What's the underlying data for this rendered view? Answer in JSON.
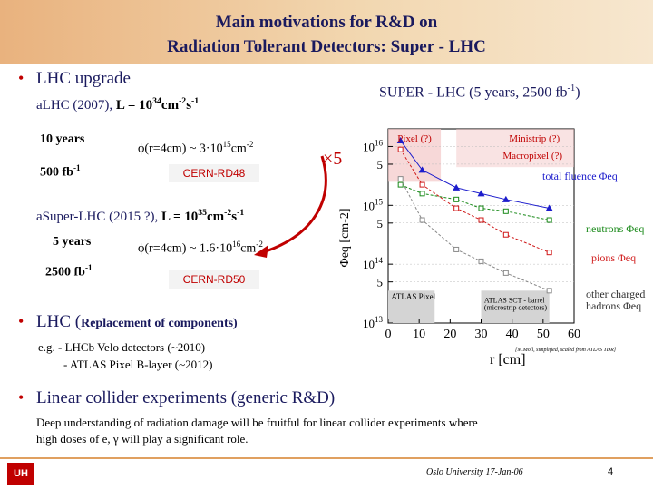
{
  "header": {
    "title_line1": "Main motivations for R&D on",
    "title_line2": "Radiation Tolerant Detectors: Super - LHC"
  },
  "bullets": {
    "b1": "LHC upgrade",
    "b2_main": "LHC (",
    "b2_small": "Replacement of components)",
    "b2_ex1": "e.g. - LHCb Velo detectors (~2010)",
    "b2_ex2": "- ATLAS Pixel B-layer (~2012)",
    "b3": "Linear collider experiments (generic R&D)",
    "b3_desc1": "Deep understanding of radiation damage will be fruitful for linear collider experiments where",
    "b3_desc2": "high doses of e, γ will play a significant role."
  },
  "lhc": {
    "line_a": "LHC (2007),",
    "lumi_prefix": "L = 10",
    "lumi_exp": "34",
    "lumi_units": "cm",
    "lumi_units_exp1": "-2",
    "lumi_units_s": "s",
    "lumi_units_exp2": "-1",
    "years": "10 years",
    "fb": "500 fb",
    "fb_exp": "-1",
    "phi_prefix": "ϕ(r=4cm) ~ 3·10",
    "phi_exp": "15",
    "phi_unit": "cm",
    "phi_unit_exp": "-2",
    "cern": "CERN-RD48",
    "times5": "×5"
  },
  "super_lhc": {
    "line_a": "Super-LHC (2015 ?),",
    "lumi_prefix": "L = 10",
    "lumi_exp": "35",
    "lumi_units": "cm",
    "lumi_units_exp1": "-2",
    "lumi_units_s": "s",
    "lumi_units_exp2": "-1",
    "years": "5 years",
    "fb": "2500 fb",
    "fb_exp": "-1",
    "phi_prefix": "ϕ(r=4cm) ~ 1.6·10",
    "phi_exp": "16",
    "phi_unit": "cm",
    "phi_unit_exp": "-2",
    "cern": "CERN-RD50"
  },
  "footer": {
    "institution": "Oslo University 17-Jan-06",
    "page": "4",
    "logo": "UH"
  },
  "chart_data": {
    "type": "line",
    "title": "SUPER - LHC (5 years, 2500 fb",
    "title_exp": "-1",
    "title_close": ")",
    "xlabel": "r [cm]",
    "ylabel": "Φeq [cm-2]",
    "xlim": [
      0,
      60
    ],
    "ylim_log10": [
      13,
      16.3
    ],
    "x_ticks": [
      "0",
      "10",
      "20",
      "30",
      "40",
      "50",
      "60"
    ],
    "y_ticks": [
      {
        "base": "10",
        "exp": "16"
      },
      {
        "base": "5",
        "exp": ""
      },
      {
        "base": "10",
        "exp": "15"
      },
      {
        "base": "5",
        "exp": ""
      },
      {
        "base": "10",
        "exp": "14"
      },
      {
        "base": "5",
        "exp": ""
      },
      {
        "base": "10",
        "exp": "13"
      }
    ],
    "regions": {
      "pixel": "Pixel (?)",
      "ministrip": "Ministrip (?)",
      "macropixel": "Macropixel (?)",
      "atlas_pixel": "ATLAS Pixel",
      "atlas_sct_1": "ATLAS SCT - barrel",
      "atlas_sct_2": "(microstrip detectors)"
    },
    "annotation": "[M.Moll, simplified, scaled from ATLAS TDR]",
    "series": [
      {
        "name": "total fluence Φeq",
        "color": "#1c1ccc",
        "x": [
          4,
          11,
          22,
          30,
          38,
          52
        ],
        "y": [
          16.1,
          15.6,
          15.3,
          15.2,
          15.1,
          14.95
        ]
      },
      {
        "name": "neutrons Φeq",
        "color": "#1a8a1a",
        "x": [
          4,
          11,
          22,
          30,
          38,
          52
        ],
        "y": [
          15.35,
          15.2,
          15.1,
          14.95,
          14.9,
          14.75
        ]
      },
      {
        "name": "pions Φeq",
        "color": "#d01a1a",
        "x": [
          4,
          11,
          22,
          30,
          38,
          52
        ],
        "y": [
          15.95,
          15.35,
          14.95,
          14.75,
          14.5,
          14.2
        ]
      },
      {
        "name": "other charged hadrons Φeq",
        "color": "#8a8a8a",
        "x": [
          4,
          11,
          22,
          30,
          38,
          52
        ],
        "y": [
          15.45,
          14.75,
          14.25,
          14.05,
          13.85,
          13.55
        ]
      }
    ]
  }
}
